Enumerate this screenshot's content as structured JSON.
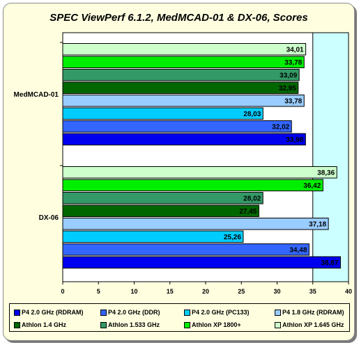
{
  "chart_data": {
    "type": "bar",
    "orientation": "horizontal",
    "title": "SPEC ViewPerf 6.1.2, MedMCAD-01 & DX-06, Scores",
    "xlim": [
      0,
      40
    ],
    "x_ticks": [
      "0",
      "5",
      "10",
      "15",
      "20",
      "25",
      "30",
      "35",
      "40"
    ],
    "grid": false,
    "highlight_band": [
      35,
      40
    ],
    "highlight_color": "#ccffff",
    "legend_position": "bottom",
    "categories": [
      "MedMCAD-01",
      "DX-06"
    ],
    "series": [
      {
        "name": "P4 2.0 GHz (RDRAM)",
        "color": "#0000ee",
        "values": [
          33.98,
          38.87
        ],
        "labels": [
          "33,98",
          "38,87"
        ]
      },
      {
        "name": "P4 2.0 GHz (DDR)",
        "color": "#3366ff",
        "values": [
          32.02,
          34.48
        ],
        "labels": [
          "32,02",
          "34,48"
        ]
      },
      {
        "name": "P4 2.0 GHz (PC133)",
        "color": "#00ccff",
        "values": [
          28.03,
          25.26
        ],
        "labels": [
          "28,03",
          "25,26"
        ]
      },
      {
        "name": "P4 1.8 GHz (RDRAM)",
        "color": "#99ccff",
        "values": [
          33.78,
          37.18
        ],
        "labels": [
          "33,78",
          "37,18"
        ]
      },
      {
        "name": "Athlon 1.4 GHz",
        "color": "#006600",
        "values": [
          32.95,
          27.45
        ],
        "labels": [
          "32,95",
          "27,45"
        ]
      },
      {
        "name": "Athlon 1.533 GHz",
        "color": "#339966",
        "values": [
          33.09,
          28.02
        ],
        "labels": [
          "33,09",
          "28,02"
        ]
      },
      {
        "name": "Athlon XP 1800+",
        "color": "#00ee00",
        "values": [
          33.78,
          36.42
        ],
        "labels": [
          "33,78",
          "36,42"
        ]
      },
      {
        "name": "Athlon XP 1.645 GHz",
        "color": "#ccffcc",
        "values": [
          34.01,
          38.36
        ],
        "labels": [
          "34,01",
          "38,36"
        ]
      }
    ]
  }
}
